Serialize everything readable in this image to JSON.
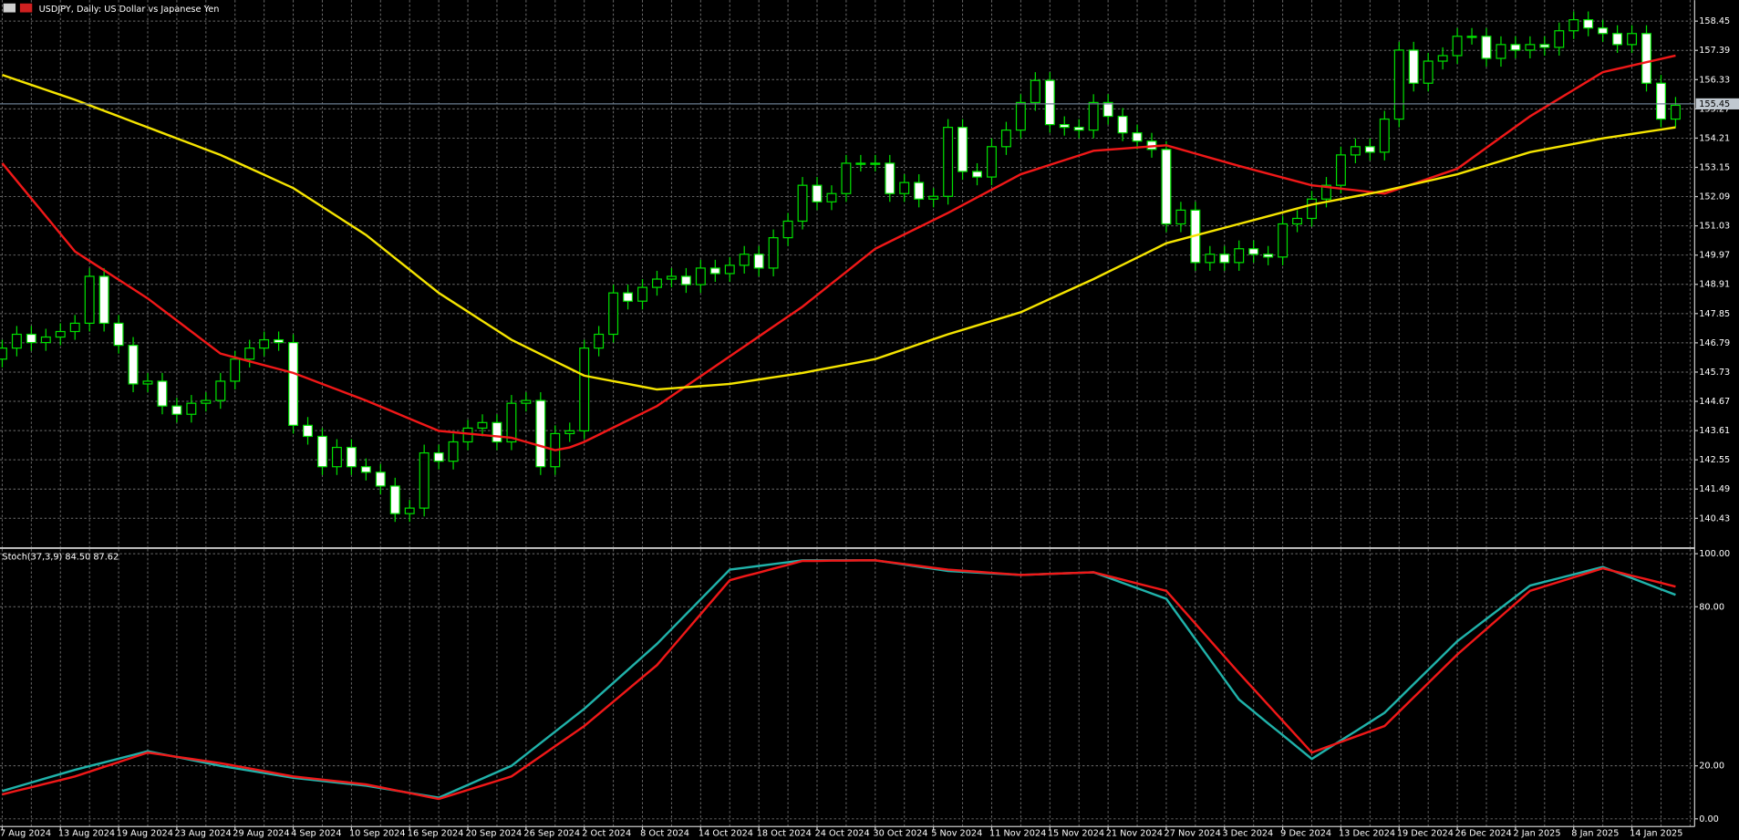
{
  "chart_data": [
    {
      "type": "candlestick",
      "title": "USDJPY, Daily:  US Dollar vs Japanese Yen",
      "open": [
        146.2,
        146.6,
        147.1,
        146.8,
        147.0,
        147.2,
        147.5,
        149.2,
        147.5,
        146.7,
        145.3,
        145.4,
        144.5,
        144.2,
        144.6,
        144.7,
        145.4,
        146.2,
        146.6,
        146.9,
        146.8,
        143.8,
        143.4,
        142.3,
        143.0,
        142.3,
        142.1,
        141.6,
        140.6,
        140.8,
        142.8,
        142.5,
        143.2,
        143.7,
        143.9,
        143.2,
        144.6,
        144.7,
        142.3,
        143.5,
        143.6,
        146.6,
        147.1,
        148.6,
        148.3,
        148.8,
        149.1,
        149.2,
        148.9,
        149.5,
        149.3,
        149.6,
        150.0,
        149.5,
        150.6,
        151.2,
        152.5,
        151.9,
        152.2,
        153.3,
        153.3,
        153.3,
        152.2,
        152.6,
        152.0,
        152.1,
        154.6,
        153.0,
        152.8,
        153.9,
        154.5,
        155.5,
        156.3,
        154.7,
        154.6,
        154.5,
        155.5,
        155.0,
        154.4,
        154.1,
        153.8,
        151.1,
        151.6,
        149.7,
        150.0,
        149.7,
        150.2,
        150.0,
        149.9,
        151.1,
        151.3,
        152.0,
        152.5,
        153.6,
        153.9,
        153.7,
        154.9,
        157.4,
        156.2,
        157.0,
        157.2,
        157.9,
        157.9,
        157.1,
        157.6,
        157.4,
        157.6,
        157.5,
        158.1,
        158.5,
        158.2,
        158.0,
        157.6,
        158.0,
        156.2,
        154.9
      ],
      "high": [
        146.9,
        147.4,
        147.4,
        147.3,
        147.5,
        147.8,
        149.5,
        149.5,
        147.8,
        147.0,
        145.7,
        145.7,
        144.8,
        144.9,
        145.0,
        145.7,
        146.5,
        146.9,
        147.2,
        147.2,
        147.1,
        144.1,
        143.7,
        143.3,
        143.3,
        142.6,
        142.4,
        141.9,
        141.1,
        143.1,
        143.1,
        143.5,
        144.0,
        144.2,
        144.2,
        144.9,
        145.0,
        145.0,
        143.8,
        143.9,
        146.9,
        147.4,
        148.9,
        148.9,
        149.1,
        149.4,
        149.5,
        149.5,
        149.8,
        149.8,
        149.9,
        150.3,
        150.3,
        150.9,
        151.5,
        152.8,
        152.8,
        152.5,
        153.6,
        153.6,
        153.6,
        153.6,
        152.9,
        152.9,
        152.4,
        154.9,
        154.9,
        153.3,
        154.2,
        154.8,
        155.8,
        156.6,
        156.6,
        155.0,
        154.9,
        155.8,
        155.8,
        155.3,
        154.7,
        154.4,
        154.1,
        151.9,
        151.9,
        150.3,
        150.3,
        150.5,
        150.5,
        150.3,
        151.4,
        151.6,
        152.3,
        152.8,
        153.9,
        154.2,
        154.2,
        155.2,
        157.7,
        157.7,
        157.3,
        157.5,
        158.2,
        158.2,
        158.2,
        157.9,
        157.9,
        157.9,
        157.9,
        158.4,
        158.8,
        158.8,
        158.5,
        158.3,
        158.3,
        158.3,
        156.5,
        155.7
      ],
      "low": [
        145.9,
        146.3,
        146.5,
        146.5,
        146.7,
        146.9,
        147.2,
        147.2,
        146.4,
        145.0,
        145.0,
        144.2,
        143.9,
        143.9,
        144.3,
        144.4,
        145.1,
        145.9,
        146.3,
        146.5,
        143.5,
        143.1,
        142.0,
        142.0,
        142.0,
        141.8,
        141.3,
        140.3,
        140.3,
        140.5,
        142.2,
        142.2,
        142.9,
        143.4,
        142.9,
        142.9,
        144.3,
        142.0,
        142.0,
        143.2,
        143.3,
        146.3,
        146.8,
        148.0,
        148.0,
        148.5,
        148.8,
        148.6,
        148.6,
        149.0,
        149.0,
        149.3,
        149.2,
        149.2,
        150.3,
        150.9,
        151.6,
        151.6,
        151.9,
        153.0,
        153.0,
        151.9,
        151.9,
        151.7,
        151.7,
        151.8,
        152.7,
        152.5,
        152.5,
        153.6,
        154.2,
        155.2,
        154.4,
        154.3,
        154.2,
        154.2,
        154.7,
        154.1,
        153.8,
        153.5,
        150.8,
        150.8,
        149.4,
        149.4,
        149.4,
        149.4,
        149.7,
        149.6,
        149.6,
        150.8,
        151.0,
        151.7,
        152.2,
        153.3,
        153.4,
        153.4,
        154.6,
        155.9,
        155.9,
        156.7,
        156.9,
        157.6,
        156.8,
        156.8,
        157.1,
        157.1,
        157.2,
        157.2,
        157.8,
        157.9,
        157.7,
        157.3,
        157.3,
        155.9,
        154.6,
        154.6
      ],
      "close": [
        146.6,
        147.1,
        146.8,
        147.0,
        147.2,
        147.5,
        149.2,
        147.5,
        146.7,
        145.3,
        145.4,
        144.5,
        144.2,
        144.6,
        144.7,
        145.4,
        146.2,
        146.6,
        146.9,
        146.8,
        143.8,
        143.4,
        142.3,
        143.0,
        142.3,
        142.1,
        141.6,
        140.6,
        140.8,
        142.8,
        142.5,
        143.2,
        143.7,
        143.9,
        143.2,
        144.6,
        144.7,
        142.3,
        143.5,
        143.6,
        146.6,
        147.1,
        148.6,
        148.3,
        148.8,
        149.1,
        149.2,
        148.9,
        149.5,
        149.3,
        149.6,
        150.0,
        149.5,
        150.6,
        151.2,
        152.5,
        151.9,
        152.2,
        153.3,
        153.3,
        153.3,
        152.2,
        152.6,
        152.0,
        152.1,
        154.6,
        153.0,
        152.8,
        153.9,
        154.5,
        155.5,
        156.3,
        154.7,
        154.6,
        154.5,
        155.5,
        155.0,
        154.4,
        154.1,
        153.8,
        151.1,
        151.6,
        149.7,
        150.0,
        149.7,
        150.2,
        150.0,
        149.9,
        151.1,
        151.3,
        152.0,
        152.5,
        153.6,
        153.9,
        153.7,
        154.9,
        157.4,
        156.2,
        157.0,
        157.2,
        157.9,
        157.9,
        157.1,
        157.6,
        157.4,
        157.6,
        157.5,
        158.1,
        158.5,
        158.2,
        158.0,
        157.6,
        158.0,
        156.2,
        154.9,
        155.4
      ],
      "up_color": "#000000",
      "down_color": "#ffffff",
      "wick_color": "#00e000",
      "lines": [
        {
          "color": "#f01818",
          "values": [
            153.3,
            152.66,
            152.02,
            151.38,
            150.74,
            150.1,
            149.76,
            149.42,
            149.08,
            148.74,
            148.4,
            148.0,
            147.6,
            147.2,
            146.8,
            146.4,
            146.26,
            146.12,
            145.98,
            145.84,
            145.7,
            145.5,
            145.3,
            145.1,
            144.9,
            144.7,
            144.48,
            144.26,
            144.04,
            143.82,
            143.6,
            143.55,
            143.5,
            143.45,
            143.4,
            143.35,
            143.2,
            143.05,
            142.9,
            143.0,
            143.2,
            143.46,
            143.72,
            143.98,
            144.24,
            144.5,
            144.86,
            145.22,
            145.58,
            145.94,
            146.3,
            146.66,
            147.02,
            147.38,
            147.74,
            148.1,
            148.52,
            148.94,
            149.36,
            149.78,
            150.2,
            150.46,
            150.72,
            150.98,
            151.24,
            151.5,
            151.78,
            152.06,
            152.34,
            152.62,
            152.9,
            153.07,
            153.24,
            153.41,
            153.58,
            153.75,
            153.79,
            153.83,
            153.87,
            153.91,
            153.95,
            153.8,
            153.65,
            153.5,
            153.35,
            153.2,
            153.06,
            152.92,
            152.78,
            152.64,
            152.5,
            152.44,
            152.38,
            152.32,
            152.26,
            152.2,
            152.38,
            152.56,
            152.74,
            152.92,
            153.1,
            153.48,
            153.86,
            154.24,
            154.62,
            155.0,
            155.32,
            155.64,
            155.96,
            156.28,
            156.6,
            156.72,
            156.84,
            156.96,
            157.08,
            157.2
          ]
        },
        {
          "color": "#f5e400",
          "values": [
            156.5,
            156.32,
            156.14,
            155.96,
            155.78,
            155.6,
            155.4,
            155.2,
            155.0,
            154.8,
            154.6,
            154.4,
            154.2,
            154.0,
            153.8,
            153.6,
            153.36,
            153.12,
            152.88,
            152.64,
            152.4,
            152.06,
            151.72,
            151.38,
            151.04,
            150.7,
            150.28,
            149.86,
            149.44,
            149.02,
            148.6,
            148.26,
            147.92,
            147.58,
            147.24,
            146.9,
            146.64,
            146.38,
            146.12,
            145.86,
            145.6,
            145.5,
            145.4,
            145.3,
            145.2,
            145.1,
            145.14,
            145.18,
            145.22,
            145.26,
            145.3,
            145.38,
            145.46,
            145.54,
            145.62,
            145.7,
            145.8,
            145.9,
            146.0,
            146.1,
            146.2,
            146.38,
            146.56,
            146.74,
            146.92,
            147.1,
            147.26,
            147.42,
            147.58,
            147.74,
            147.9,
            148.14,
            148.38,
            148.62,
            148.86,
            149.1,
            149.36,
            149.62,
            149.88,
            150.14,
            150.4,
            150.54,
            150.68,
            150.82,
            150.96,
            151.1,
            151.24,
            151.38,
            151.52,
            151.66,
            151.8,
            151.9,
            152.0,
            152.1,
            152.2,
            152.3,
            152.42,
            152.54,
            152.66,
            152.78,
            152.9,
            153.06,
            153.22,
            153.38,
            153.54,
            153.7,
            153.8,
            153.9,
            154.0,
            154.1,
            154.2,
            154.28,
            154.36,
            154.44,
            154.52,
            154.6
          ]
        }
      ],
      "current_price": 155.45,
      "ylim": [
        139.39,
        159.21
      ],
      "yticks": [
        158.45,
        157.39,
        156.33,
        155.27,
        154.21,
        153.15,
        152.09,
        151.03,
        149.97,
        148.91,
        147.85,
        146.79,
        145.73,
        144.67,
        143.61,
        142.55,
        141.49,
        140.43
      ],
      "grid": true
    },
    {
      "type": "line",
      "title": "Stoch(37,3,9) 84.50 87.62",
      "categories": [
        "7 Aug 2024",
        null,
        null,
        null,
        "13 Aug 2024",
        null,
        null,
        null,
        "19 Aug 2024",
        null,
        null,
        null,
        "23 Aug 2024",
        null,
        null,
        null,
        "29 Aug 2024",
        null,
        null,
        null,
        "4 Sep 2024",
        null,
        null,
        null,
        "10 Sep 2024",
        null,
        null,
        null,
        "16 Sep 2024",
        null,
        null,
        null,
        "20 Sep 2024",
        null,
        null,
        null,
        "26 Sep 2024",
        null,
        null,
        null,
        "2 Oct 2024",
        null,
        null,
        null,
        "8 Oct 2024",
        null,
        null,
        null,
        "14 Oct 2024",
        null,
        null,
        null,
        "18 Oct 2024",
        null,
        null,
        null,
        "24 Oct 2024",
        null,
        null,
        null,
        "30 Oct 2024",
        null,
        null,
        null,
        "5 Nov 2024",
        null,
        null,
        null,
        "11 Nov 2024",
        null,
        null,
        null,
        "15 Nov 2024",
        null,
        null,
        null,
        "21 Nov 2024",
        null,
        null,
        null,
        "27 Nov 2024",
        null,
        null,
        null,
        "3 Dec 2024",
        null,
        null,
        null,
        "9 Dec 2024",
        null,
        null,
        null,
        "13 Dec 2024",
        null,
        null,
        null,
        "19 Dec 2024",
        null,
        null,
        null,
        "26 Dec 2024",
        null,
        null,
        null,
        "2 Jan 2025",
        null,
        null,
        null,
        "8 Jan 2025",
        null,
        null,
        null,
        "14 Jan 2025",
        null,
        null,
        null
      ],
      "series": [
        {
          "color": "#20b2aa",
          "values": [
            10.5,
            12.1,
            13.7,
            15.3,
            16.9,
            18.5,
            19.9,
            21.3,
            22.7,
            24.1,
            25.5,
            24.4,
            23.3,
            22.2,
            21.1,
            20,
            19.1,
            18.2,
            17.3,
            16.4,
            15.5,
            14.9,
            14.3,
            13.7,
            13.1,
            12.5,
            11.6,
            10.7,
            9.8,
            8.9,
            8,
            10.4,
            12.8,
            15.2,
            17.6,
            20,
            24.3,
            28.6,
            32.9,
            37.2,
            41.5,
            46.4,
            51.3,
            56.2,
            61.1,
            66,
            71.6,
            77.2,
            82.8,
            88.4,
            94,
            94.7,
            95.4,
            96.1,
            96.8,
            97.5,
            97.5,
            97.5,
            97.5,
            97.5,
            97.5,
            96.7,
            95.9,
            95.1,
            94.3,
            93.5,
            93.2,
            92.9,
            92.6,
            92.3,
            92,
            92.2,
            92.4,
            92.6,
            92.8,
            93,
            91,
            89,
            87,
            85,
            83,
            75.4,
            67.8,
            60.2,
            52.6,
            45,
            40.5,
            36.0,
            31.6,
            27.1,
            22.6,
            26.1,
            29.6,
            33.0,
            36.5,
            40,
            45.4,
            50.8,
            56.2,
            61.6,
            67,
            71.2,
            75.4,
            79.6,
            83.8,
            88,
            89.4,
            90.8,
            92.2,
            93.6,
            95,
            92.9,
            90.8,
            88.7,
            86.6,
            84.5
          ]
        },
        {
          "color": "#f01818",
          "values": [
            9.2,
            10.6,
            11.9,
            13.3,
            14.6,
            16,
            17.8,
            19.6,
            21.4,
            23.2,
            25,
            24.2,
            23.4,
            22.6,
            21.8,
            21,
            20,
            19,
            18,
            17,
            16,
            15.4,
            14.8,
            14.2,
            13.6,
            13,
            11.9,
            10.8,
            9.7,
            8.6,
            7.5,
            9.2,
            10.9,
            12.6,
            14.3,
            16,
            19.8,
            23.6,
            27.4,
            31.2,
            35,
            39.6,
            44.2,
            48.8,
            53.4,
            58,
            64.4,
            70.8,
            77.2,
            83.6,
            90,
            91.5,
            92.9,
            94.4,
            95.8,
            97.3,
            97.3,
            97.4,
            97.4,
            97.5,
            97.5,
            96.8,
            96.1,
            95.4,
            94.7,
            94,
            93.6,
            93.2,
            92.8,
            92.4,
            92,
            92.2,
            92.4,
            92.6,
            92.8,
            93,
            91.6,
            90.2,
            88.8,
            87.4,
            86,
            79.8,
            73.6,
            67.4,
            61.2,
            55,
            49,
            43,
            37,
            31,
            25,
            27,
            29,
            31,
            33,
            35,
            40.4,
            45.8,
            51.2,
            56.6,
            62,
            66.8,
            71.6,
            76.4,
            81.2,
            86,
            87.7,
            89.4,
            91.1,
            92.8,
            94.5,
            93.1,
            91.7,
            90.4,
            89,
            87.6
          ]
        }
      ],
      "ylim": [
        -2.9,
        101.7
      ],
      "yticks": [
        {
          "value": 100,
          "label": "100.00"
        },
        {
          "value": 80,
          "label": "80.00"
        },
        {
          "value": 20,
          "label": "20.00"
        },
        {
          "value": 0,
          "label": "0.00"
        }
      ],
      "grid": true
    }
  ]
}
